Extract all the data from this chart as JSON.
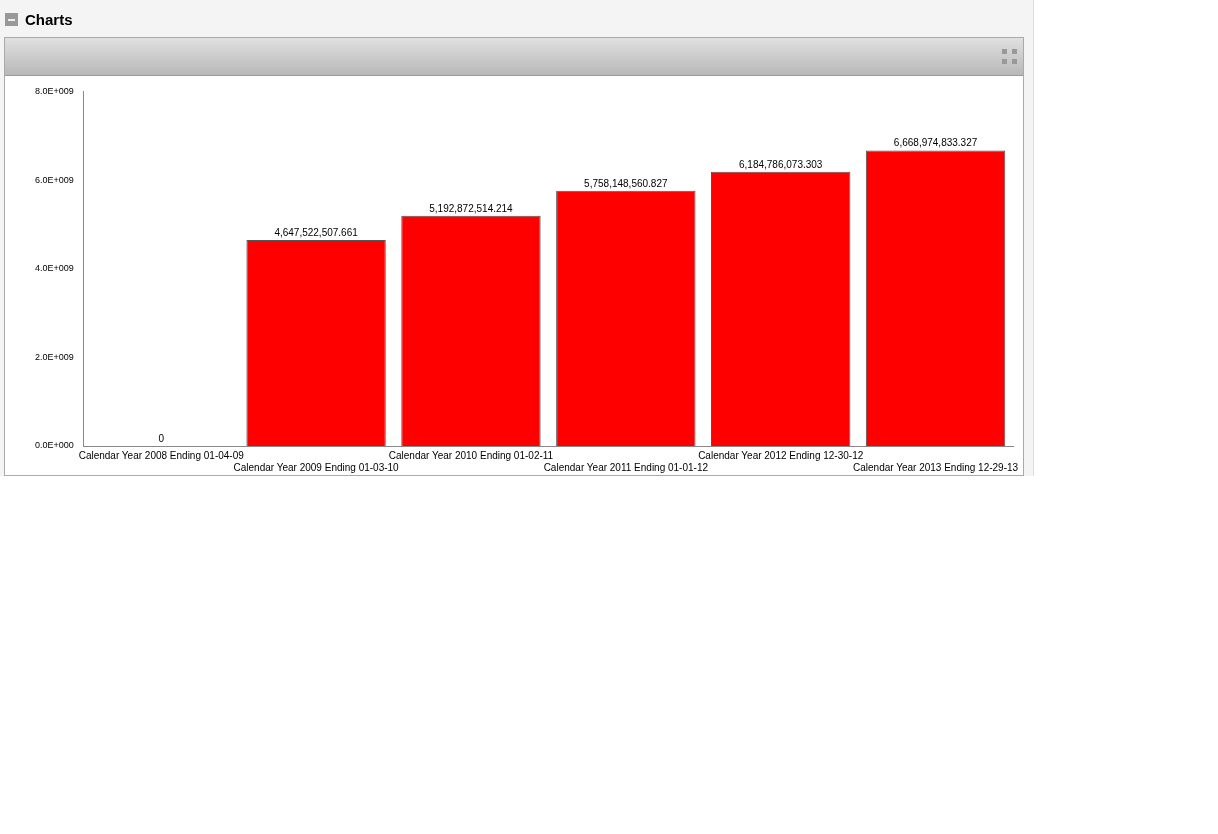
{
  "chart_data": {
    "type": "bar",
    "title": "Charts",
    "categories": [
      "Calendar Year 2008 Ending 01-04-09",
      "Calendar Year 2009 Ending 01-03-10",
      "Calendar Year 2010 Ending 01-02-11",
      "Calendar Year 2011 Ending 01-01-12",
      "Calendar Year 2012 Ending 12-30-12",
      "Calendar Year 2013 Ending 12-29-13"
    ],
    "values": [
      0,
      4647522507.661,
      5192872514.214,
      5758148560.827,
      6184786073.303,
      6668974833.327
    ],
    "value_labels": [
      "0",
      "4,647,522,507.661",
      "5,192,872,514.214",
      "5,758,148,560.827",
      "6,184,786,073.303",
      "6,668,974,833.327"
    ],
    "color": "#ff0000",
    "ylim": [
      0,
      8000000000
    ],
    "yticks": [
      {
        "value": 0,
        "label": "0.0E+000"
      },
      {
        "value": 2000000000,
        "label": "2.0E+009"
      },
      {
        "value": 4000000000,
        "label": "4.0E+009"
      },
      {
        "value": 6000000000,
        "label": "6.0E+009"
      },
      {
        "value": 8000000000,
        "label": "8.0E+009"
      }
    ],
    "grid": false,
    "legend": false
  }
}
